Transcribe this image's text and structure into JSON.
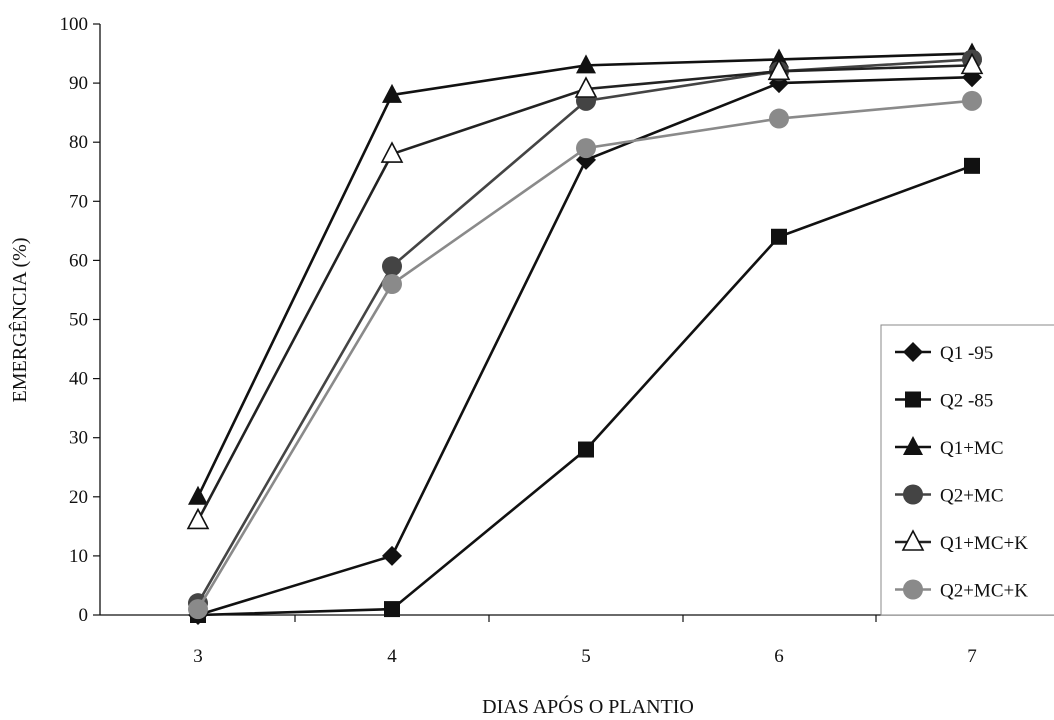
{
  "chart_data": {
    "type": "line",
    "title": "",
    "xlabel": "DIAS APÓS O PLANTIO",
    "ylabel": "EMERGÊNCIA (%)",
    "x": [
      3,
      4,
      5,
      6,
      7
    ],
    "x_tick_labels": [
      "3",
      "4",
      "5",
      "6",
      "7"
    ],
    "ylim": [
      0,
      100
    ],
    "y_ticks": [
      0,
      10,
      20,
      30,
      40,
      50,
      60,
      70,
      80,
      90,
      100
    ],
    "grid": false,
    "legend_position": "right",
    "series": [
      {
        "name": "Q1 -95",
        "values": [
          0,
          10,
          77,
          90,
          91
        ],
        "marker": "diamond",
        "color": "#111111"
      },
      {
        "name": "Q2 -85",
        "values": [
          0,
          1,
          28,
          64,
          76
        ],
        "marker": "square",
        "color": "#111111"
      },
      {
        "name": "Q1+MC",
        "values": [
          20,
          88,
          93,
          94,
          95
        ],
        "marker": "triangle",
        "color": "#111111"
      },
      {
        "name": "Q2+MC",
        "values": [
          2,
          59,
          87,
          92,
          94
        ],
        "marker": "circle",
        "color": "#444444"
      },
      {
        "name": "Q1+MC+K",
        "values": [
          16,
          78,
          89,
          92,
          93
        ],
        "marker": "triangle-open",
        "color": "#333333"
      },
      {
        "name": "Q2+MC+K",
        "values": [
          1,
          56,
          79,
          84,
          87
        ],
        "marker": "circle",
        "color": "#8a8a8a"
      }
    ]
  }
}
